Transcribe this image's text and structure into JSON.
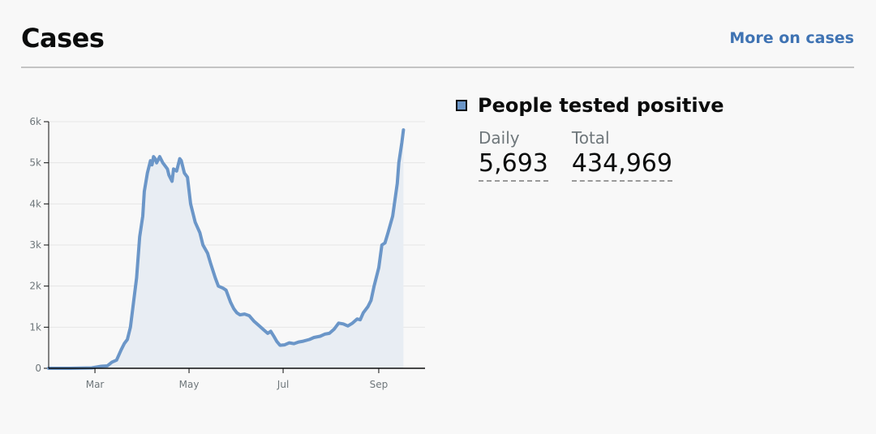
{
  "header": {
    "title": "Cases",
    "more_link": "More on cases"
  },
  "legend": {
    "series_name": "People tested positive",
    "swatch_color": "#6b96c8"
  },
  "stats": [
    {
      "label": "Daily",
      "value": "5,693"
    },
    {
      "label": "Total",
      "value": "434,969"
    }
  ],
  "chart_data": {
    "type": "area",
    "ylim": [
      0,
      6000
    ],
    "y_ticks": [
      {
        "value": 0,
        "label": "0"
      },
      {
        "value": 1000,
        "label": "1k"
      },
      {
        "value": 2000,
        "label": "2k"
      },
      {
        "value": 3000,
        "label": "3k"
      },
      {
        "value": 4000,
        "label": "4k"
      },
      {
        "value": 5000,
        "label": "5k"
      },
      {
        "value": 6000,
        "label": "6k"
      }
    ],
    "xlim": [
      "2020-01-31",
      "2020-10-01"
    ],
    "x_ticks": [
      {
        "value": "2020-03-01",
        "label": "Mar"
      },
      {
        "value": "2020-05-01",
        "label": "May"
      },
      {
        "value": "2020-07-01",
        "label": "Jul"
      },
      {
        "value": "2020-09-01",
        "label": "Sep"
      }
    ],
    "grid": true,
    "line_color": "#6b96c8",
    "fill_color": "#e8edf3",
    "series": [
      {
        "name": "People tested positive",
        "points": [
          [
            "2020-01-31",
            0
          ],
          [
            "2020-02-14",
            0
          ],
          [
            "2020-02-28",
            10
          ],
          [
            "2020-03-05",
            50
          ],
          [
            "2020-03-09",
            60
          ],
          [
            "2020-03-12",
            150
          ],
          [
            "2020-03-15",
            200
          ],
          [
            "2020-03-18",
            450
          ],
          [
            "2020-03-20",
            600
          ],
          [
            "2020-03-22",
            700
          ],
          [
            "2020-03-24",
            1000
          ],
          [
            "2020-03-26",
            1600
          ],
          [
            "2020-03-28",
            2200
          ],
          [
            "2020-03-30",
            3200
          ],
          [
            "2020-04-01",
            3700
          ],
          [
            "2020-04-02",
            4300
          ],
          [
            "2020-04-04",
            4750
          ],
          [
            "2020-04-06",
            5050
          ],
          [
            "2020-04-07",
            4950
          ],
          [
            "2020-04-08",
            5150
          ],
          [
            "2020-04-09",
            5100
          ],
          [
            "2020-04-10",
            5000
          ],
          [
            "2020-04-12",
            5150
          ],
          [
            "2020-04-14",
            5000
          ],
          [
            "2020-04-15",
            4950
          ],
          [
            "2020-04-17",
            4850
          ],
          [
            "2020-04-18",
            4700
          ],
          [
            "2020-04-20",
            4550
          ],
          [
            "2020-04-21",
            4850
          ],
          [
            "2020-04-23",
            4800
          ],
          [
            "2020-04-25",
            5100
          ],
          [
            "2020-04-26",
            5050
          ],
          [
            "2020-04-28",
            4750
          ],
          [
            "2020-04-30",
            4650
          ],
          [
            "2020-05-02",
            4000
          ],
          [
            "2020-05-05",
            3550
          ],
          [
            "2020-05-08",
            3300
          ],
          [
            "2020-05-10",
            3000
          ],
          [
            "2020-05-13",
            2800
          ],
          [
            "2020-05-15",
            2550
          ],
          [
            "2020-05-18",
            2200
          ],
          [
            "2020-05-20",
            2000
          ],
          [
            "2020-05-23",
            1950
          ],
          [
            "2020-05-25",
            1900
          ],
          [
            "2020-05-28",
            1600
          ],
          [
            "2020-05-30",
            1450
          ],
          [
            "2020-06-01",
            1350
          ],
          [
            "2020-06-03",
            1300
          ],
          [
            "2020-06-06",
            1320
          ],
          [
            "2020-06-09",
            1280
          ],
          [
            "2020-06-12",
            1150
          ],
          [
            "2020-06-15",
            1050
          ],
          [
            "2020-06-18",
            950
          ],
          [
            "2020-06-21",
            850
          ],
          [
            "2020-06-23",
            900
          ],
          [
            "2020-06-25",
            780
          ],
          [
            "2020-06-27",
            650
          ],
          [
            "2020-06-29",
            560
          ],
          [
            "2020-07-02",
            570
          ],
          [
            "2020-07-05",
            620
          ],
          [
            "2020-07-08",
            600
          ],
          [
            "2020-07-11",
            640
          ],
          [
            "2020-07-14",
            660
          ],
          [
            "2020-07-18",
            700
          ],
          [
            "2020-07-21",
            750
          ],
          [
            "2020-07-25",
            780
          ],
          [
            "2020-07-28",
            830
          ],
          [
            "2020-07-31",
            850
          ],
          [
            "2020-08-03",
            950
          ],
          [
            "2020-08-06",
            1100
          ],
          [
            "2020-08-09",
            1080
          ],
          [
            "2020-08-12",
            1030
          ],
          [
            "2020-08-15",
            1100
          ],
          [
            "2020-08-18",
            1200
          ],
          [
            "2020-08-20",
            1180
          ],
          [
            "2020-08-22",
            1350
          ],
          [
            "2020-08-25",
            1500
          ],
          [
            "2020-08-27",
            1650
          ],
          [
            "2020-08-29",
            2000
          ],
          [
            "2020-09-01",
            2450
          ],
          [
            "2020-09-03",
            3000
          ],
          [
            "2020-09-05",
            3050
          ],
          [
            "2020-09-07",
            3300
          ],
          [
            "2020-09-10",
            3700
          ],
          [
            "2020-09-13",
            4500
          ],
          [
            "2020-09-14",
            5000
          ],
          [
            "2020-09-16",
            5500
          ],
          [
            "2020-09-17",
            5800
          ]
        ]
      }
    ]
  }
}
